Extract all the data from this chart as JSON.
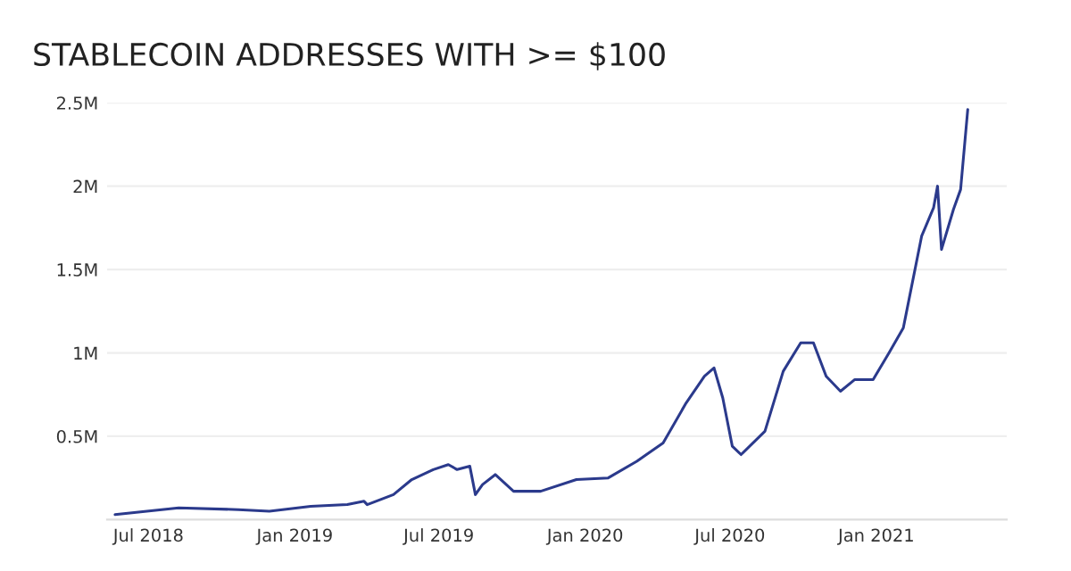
{
  "chart_data": {
    "type": "line",
    "title": "STABLECOIN ADDRESSES WITH >= $100",
    "x": [
      "2018-05-20",
      "2018-08-08",
      "2018-10-22",
      "2018-11-30",
      "2019-01-21",
      "2019-03-08",
      "2019-03-29",
      "2019-04-02",
      "2019-05-05",
      "2019-05-28",
      "2019-06-24",
      "2019-07-13",
      "2019-07-24",
      "2019-08-09",
      "2019-08-16",
      "2019-08-25",
      "2019-09-10",
      "2019-10-03",
      "2019-11-06",
      "2019-12-21",
      "2020-01-30",
      "2020-03-06",
      "2020-04-08",
      "2020-05-07",
      "2020-05-30",
      "2020-06-11",
      "2020-06-22",
      "2020-07-04",
      "2020-07-15",
      "2020-08-14",
      "2020-09-06",
      "2020-09-28",
      "2020-10-14",
      "2020-10-30",
      "2020-11-17",
      "2020-12-05",
      "2020-12-28",
      "2021-01-17",
      "2021-02-04",
      "2021-02-27",
      "2021-03-14",
      "2021-03-19",
      "2021-03-24",
      "2021-04-08",
      "2021-04-17",
      "2021-04-26"
    ],
    "series": [
      {
        "color": "#2b3a8c",
        "values": [
          30000,
          70000,
          60000,
          50000,
          80000,
          90000,
          110000,
          90000,
          150000,
          240000,
          300000,
          330000,
          300000,
          320000,
          150000,
          210000,
          270000,
          170000,
          170000,
          240000,
          250000,
          350000,
          460000,
          700000,
          860000,
          910000,
          730000,
          440000,
          390000,
          530000,
          890000,
          1060000,
          1060000,
          860000,
          770000,
          840000,
          840000,
          1000000,
          1150000,
          1700000,
          1870000,
          2000000,
          1620000,
          1860000,
          1980000,
          2460000
        ]
      }
    ],
    "xlim": [
      "2018-05-10",
      "2021-06-14"
    ],
    "xticks": [
      {
        "value": "2018-07-01",
        "label": "Jul 2018"
      },
      {
        "value": "2019-01-01",
        "label": "Jan 2019"
      },
      {
        "value": "2019-07-01",
        "label": "Jul 2019"
      },
      {
        "value": "2020-01-01",
        "label": "Jan 2020"
      },
      {
        "value": "2020-07-01",
        "label": "Jul 2020"
      },
      {
        "value": "2021-01-01",
        "label": "Jan 2021"
      }
    ],
    "ylim": [
      0,
      2500000
    ],
    "yticks": [
      {
        "value": 500000,
        "label": "0.5M"
      },
      {
        "value": 1000000,
        "label": "1M"
      },
      {
        "value": 1500000,
        "label": "1.5M"
      },
      {
        "value": 2000000,
        "label": "2M"
      },
      {
        "value": 2500000,
        "label": "2.5M"
      }
    ],
    "grid": "y",
    "line_style": "solid"
  }
}
